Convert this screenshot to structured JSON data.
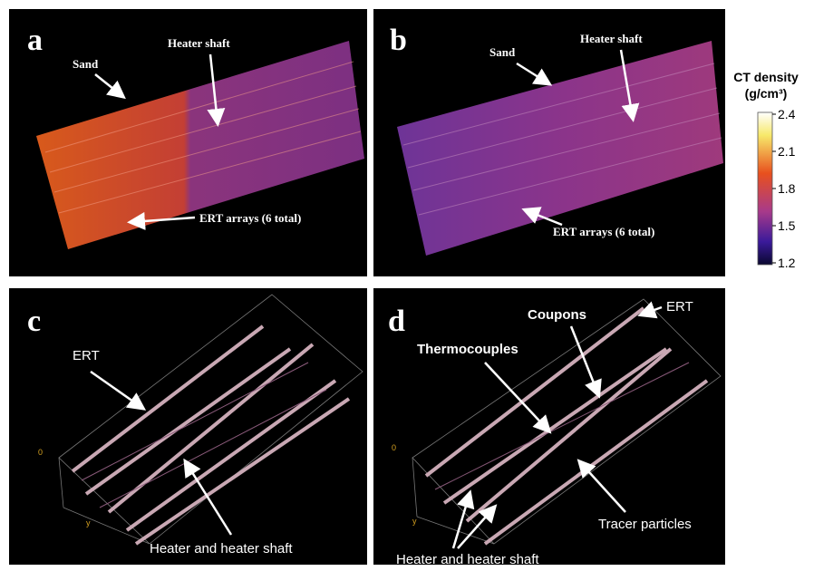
{
  "panels": [
    {
      "label": "a",
      "annotations": [
        "Sand",
        "Heater shaft",
        "ERT arrays (6 total)"
      ]
    },
    {
      "label": "b",
      "annotations": [
        "Sand",
        "Heater shaft",
        "ERT arrays (6 total)"
      ]
    },
    {
      "label": "c",
      "annotations": [
        "ERT",
        "Heater and heater shaft"
      ],
      "axis_labels": [
        "0",
        "y"
      ]
    },
    {
      "label": "d",
      "annotations": [
        "Coupons",
        "ERT",
        "Thermocouples",
        "Tracer particles",
        "Heater and heater shaft"
      ],
      "axis_labels": [
        "0",
        "y"
      ]
    }
  ],
  "colorbar": {
    "title": [
      "CT density",
      "(g/cm³)"
    ],
    "ticks": [
      2.4,
      2.1,
      1.8,
      1.5,
      1.2
    ]
  }
}
